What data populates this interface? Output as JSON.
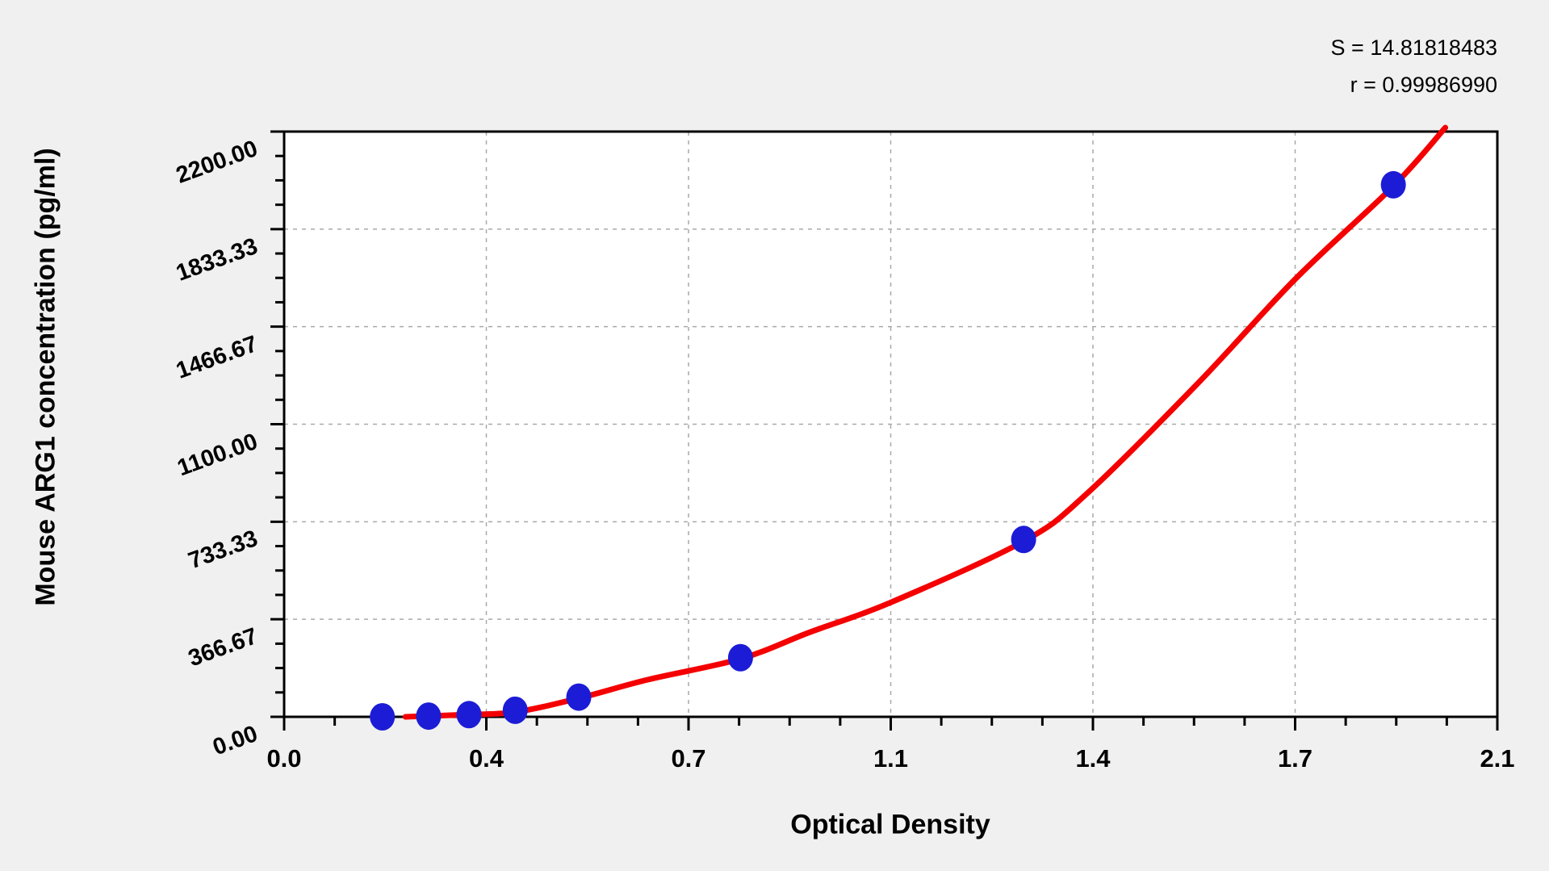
{
  "annotations": {
    "s_label": "S = 14.81818483",
    "r_label": "r = 0.99986990"
  },
  "chart_data": {
    "type": "scatter",
    "xlabel": "Optical Density",
    "ylabel": "Mouse ARG1 concentration (pg/ml)",
    "xlim": [
      0,
      2.1
    ],
    "ylim": [
      0,
      2200
    ],
    "x_ticks": [
      0,
      0.35,
      0.7,
      1.05,
      1.4,
      1.75,
      2.1
    ],
    "x_tick_labels": [
      "0.0",
      "0.4",
      "0.7",
      "1.1",
      "1.4",
      "1.7",
      "2.1"
    ],
    "y_ticks": [
      0,
      366.67,
      733.33,
      1100,
      1466.67,
      1833.33,
      2200
    ],
    "y_tick_labels": [
      "0.00",
      "366.67",
      "733.33",
      "1100.00",
      "1466.67",
      "1833.33",
      "2200.00"
    ],
    "minor_per_major": 4,
    "grid": "dashed-interior-majors",
    "legend": "none",
    "stats": {
      "S": "14.81818483",
      "r": "0.99986990"
    },
    "series": [
      {
        "name": "standard-points",
        "type": "scatter",
        "color": "#1c1cd6",
        "points": [
          [
            0.17,
            0
          ],
          [
            0.25,
            2.74
          ],
          [
            0.32,
            8.23
          ],
          [
            0.4,
            24.69
          ],
          [
            0.51,
            74.07
          ],
          [
            0.79,
            222.22
          ],
          [
            1.28,
            666.67
          ],
          [
            1.92,
            2000
          ]
        ]
      },
      {
        "name": "fitted-curve",
        "type": "line",
        "color": "#f50000",
        "points": [
          [
            0.21,
            0
          ],
          [
            0.31,
            8
          ],
          [
            0.4,
            18
          ],
          [
            0.51,
            70
          ],
          [
            0.63,
            140
          ],
          [
            0.79,
            218
          ],
          [
            0.91,
            318
          ],
          [
            1.05,
            430
          ],
          [
            1.28,
            660
          ],
          [
            1.39,
            840
          ],
          [
            1.58,
            1250
          ],
          [
            1.75,
            1645
          ],
          [
            1.92,
            1995
          ],
          [
            2.01,
            2215
          ]
        ]
      }
    ]
  },
  "colors": {
    "page_bg": "#f0f0f0",
    "plot_bg": "#ffffff",
    "frame": "#000000",
    "grid": "#a9a9a9",
    "curve": "#f50000",
    "point": "#1c1cd6"
  }
}
